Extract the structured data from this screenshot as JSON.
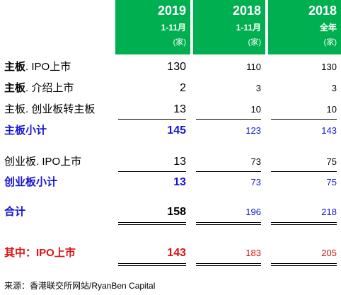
{
  "header": {
    "col1": {
      "year": "2019",
      "period": "1-11月",
      "unit": "(家)"
    },
    "col2": {
      "year": "2018",
      "period": "1-11月",
      "unit": "(家)"
    },
    "col3": {
      "year": "2018",
      "period": "全年",
      "unit": "(家)"
    }
  },
  "rows": [
    {
      "label_bold": "主板",
      "label_rest": ". IPO上市",
      "v1": "130",
      "v2": "110",
      "v3": "130"
    },
    {
      "label_bold": "主板",
      "label_rest": ". 介绍上市",
      "v1": "2",
      "v2": "3",
      "v3": "3"
    },
    {
      "label": "主板. 创业板转主板",
      "v1": "13",
      "v2": "10",
      "v3": "10"
    },
    {
      "label": "主板小计",
      "v1": "145",
      "v2": "123",
      "v3": "143"
    },
    {
      "label": "创业板. IPO上市",
      "v1": "13",
      "v2": "73",
      "v3": "75"
    },
    {
      "label": "创业板小计",
      "v1": "13",
      "v2": "73",
      "v3": "75"
    },
    {
      "label": "合计",
      "v1": "158",
      "v2": "196",
      "v3": "218"
    },
    {
      "label": "其中：IPO上市",
      "v1": "143",
      "v2": "183",
      "v3": "205"
    }
  ],
  "colors": {
    "header_bg": "#00b050",
    "subtotal": "#1414d4",
    "ipo_total": "#e01010"
  },
  "source": "来源：香港联交所网站/RyanBen Capital"
}
